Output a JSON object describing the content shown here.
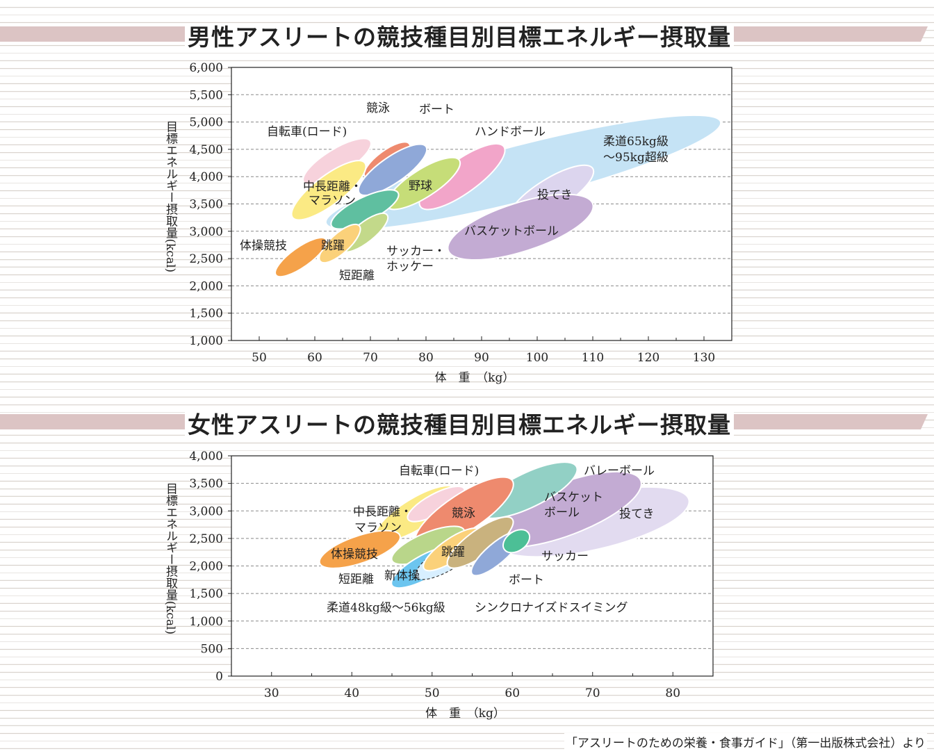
{
  "titles": {
    "male": "男性アスリートの競技種目別目標エネルギー摂取量",
    "female": "女性アスリートの競技種目別目標エネルギー摂取量"
  },
  "footer": "「アスリートのための栄養・食事ガイド」（第一出版株式会社）より",
  "chart_data": [
    {
      "type": "scatter",
      "id": "male",
      "title": "男性アスリートの競技種目別目標エネルギー摂取量",
      "xlabel": "体　重　（kg）",
      "ylabel": "目標エネルギー摂取量(kcal)",
      "xlim": [
        45,
        135
      ],
      "ylim": [
        1000,
        6000
      ],
      "xticks": [
        50,
        60,
        70,
        80,
        90,
        100,
        110,
        120,
        130
      ],
      "yticks": [
        "1,000",
        "1,500",
        "2,000",
        "2,500",
        "3,000",
        "3,500",
        "4,000",
        "4,500",
        "5,000",
        "5,500",
        "6,000"
      ],
      "grid": "horizontal-dashed",
      "regions": [
        {
          "name": "柔道65kg級〜95kg超級",
          "color": "#c5e3f5",
          "x": [
            62,
            133
          ],
          "y": [
            3150,
            5000
          ]
        },
        {
          "name": "自転車(ロード)",
          "color": "#f7d2dc",
          "x": [
            58,
            70
          ],
          "y": [
            3900,
            4650
          ]
        },
        {
          "name": "競泳",
          "color": "#ee8a6e",
          "x": [
            69,
            77
          ],
          "y": [
            4000,
            4600
          ]
        },
        {
          "name": "ボート",
          "color": "#8fa8d8",
          "x": [
            68,
            80
          ],
          "y": [
            3700,
            4550
          ]
        },
        {
          "name": "ハンドボール",
          "color": "#f2a5c9",
          "x": [
            79,
            94
          ],
          "y": [
            3450,
            4550
          ]
        },
        {
          "name": "野球",
          "color": "#c6dd78",
          "x": [
            73,
            86
          ],
          "y": [
            3450,
            4300
          ]
        },
        {
          "name": "中長距離・マラソン",
          "color": "#fbea84",
          "x": [
            56,
            69
          ],
          "y": [
            3250,
            4250
          ]
        },
        {
          "name": "サッカー・ホッケー",
          "color": "#5fbfa0",
          "x": [
            63,
            75
          ],
          "y": [
            3100,
            3700
          ]
        },
        {
          "name": "短距離",
          "color": "#c3d98a",
          "x": [
            65,
            73
          ],
          "y": [
            2650,
            3300
          ]
        },
        {
          "name": "跳躍",
          "color": "#fbd17a",
          "x": [
            61,
            68
          ],
          "y": [
            2450,
            3100
          ]
        },
        {
          "name": "体操競技",
          "color": "#f5a24a",
          "x": [
            53,
            62
          ],
          "y": [
            2200,
            2850
          ]
        },
        {
          "name": "投てき",
          "color": "#dcd5ee",
          "x": [
            95,
            110
          ],
          "y": [
            3200,
            4150
          ]
        },
        {
          "name": "バスケットボール",
          "color": "#c3abd3",
          "x": [
            84,
            110
          ],
          "y": [
            2650,
            3500
          ]
        }
      ],
      "labels": [
        "自転車(ロード)",
        "競泳",
        "ボート",
        "ハンドボール",
        "柔道65kg級",
        "〜95kg超級",
        "中長距離・",
        "マラソン",
        "野球",
        "投てき",
        "バスケットボール",
        "体操競技",
        "跳躍",
        "サッカー・",
        "ホッケー",
        "短距離"
      ]
    },
    {
      "type": "scatter",
      "id": "female",
      "title": "女性アスリートの競技種目別目標エネルギー摂取量",
      "xlabel": "体　重　（kg）",
      "ylabel": "目標エネルギー摂取量(kcal)",
      "xlim": [
        25,
        85
      ],
      "ylim": [
        0,
        4000
      ],
      "xticks": [
        30,
        40,
        50,
        60,
        70,
        80
      ],
      "yticks": [
        "0",
        "500",
        "1,000",
        "1,500",
        "2,000",
        "2,500",
        "3,000",
        "3,500",
        "4,000"
      ],
      "grid": "horizontal-dashed",
      "regions": [
        {
          "name": "投てき",
          "color": "#e2dbf0",
          "x": [
            58,
            82
          ],
          "y": [
            2400,
            3200
          ]
        },
        {
          "name": "バスケットボール",
          "color": "#c3abd3",
          "x": [
            57,
            76
          ],
          "y": [
            2500,
            3550
          ]
        },
        {
          "name": "バレーボール",
          "color": "#92d0c5",
          "x": [
            56,
            68
          ],
          "y": [
            2950,
            3800
          ]
        },
        {
          "name": "中長距離・マラソン",
          "color": "#fbea84",
          "x": [
            43,
            53
          ],
          "y": [
            2500,
            3400
          ]
        },
        {
          "name": "自転車(ロード)",
          "color": "#f7d2dc",
          "x": [
            47,
            54
          ],
          "y": [
            2850,
            3400
          ]
        },
        {
          "name": "競泳",
          "color": "#ee8a6e",
          "x": [
            48,
            60
          ],
          "y": [
            2400,
            3550
          ]
        },
        {
          "name": "体操競技",
          "color": "#f5a24a",
          "x": [
            36,
            46
          ],
          "y": [
            2050,
            2550
          ]
        },
        {
          "name": "短距離",
          "color": "#b9d68a",
          "x": [
            45,
            54
          ],
          "y": [
            2100,
            2650
          ]
        },
        {
          "name": "新体操",
          "color": "#6cc5ef",
          "x": [
            45,
            53
          ],
          "y": [
            1650,
            2300
          ]
        },
        {
          "name": "柔道48kg級〜56kg級",
          "color": "#d8efff",
          "x": [
            48,
            56
          ],
          "y": [
            1800,
            2500
          ]
        },
        {
          "name": "跳躍",
          "color": "#fbd17a",
          "x": [
            49,
            56
          ],
          "y": [
            1950,
            2650
          ]
        },
        {
          "name": "シンクロナイズドスイミング",
          "color": "#c9b27e",
          "x": [
            52,
            60
          ],
          "y": [
            2000,
            2850
          ]
        },
        {
          "name": "ボート",
          "color": "#8fa8d8",
          "x": [
            55,
            61
          ],
          "y": [
            1850,
            2600
          ]
        },
        {
          "name": "サッカー",
          "color": "#4cbf96",
          "x": [
            59,
            62
          ],
          "y": [
            2300,
            2600
          ]
        }
      ],
      "labels": [
        "自転車(ロード)",
        "バレーボール",
        "中長距離・",
        "マラソン",
        "競泳",
        "バスケット",
        "ボール",
        "投てき",
        "体操競技",
        "跳躍",
        "サッカー",
        "短距離",
        "新体操",
        "ボート",
        "柔道48kg級〜56kg級",
        "シンクロナイズドスイミング"
      ]
    }
  ]
}
